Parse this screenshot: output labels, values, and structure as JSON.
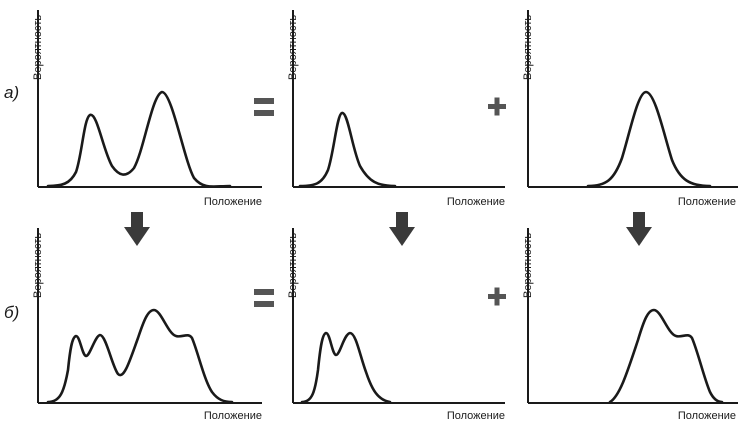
{
  "rows": [
    {
      "label": "а)",
      "panels": [
        {
          "ylabel": "Вероятность",
          "xlabel": "Положение",
          "curve": "double-peak"
        },
        {
          "ylabel": "Вероятность",
          "xlabel": "Положение",
          "curve": "narrow-peak"
        },
        {
          "ylabel": "Вероятность",
          "xlabel": "Положение",
          "curve": "wide-peak"
        }
      ],
      "operators": [
        "=",
        "+"
      ]
    },
    {
      "label": "б)",
      "panels": [
        {
          "ylabel": "Вероятность",
          "xlabel": "Положение",
          "curve": "four-peak"
        },
        {
          "ylabel": "Вероятность",
          "xlabel": "Положение",
          "curve": "split-narrow-peak"
        },
        {
          "ylabel": "Вероятность",
          "xlabel": "Положение",
          "curve": "shouldered-peak"
        }
      ],
      "operators": [
        "=",
        "+"
      ]
    }
  ],
  "arrows": [
    "down-arrow",
    "down-arrow",
    "down-arrow"
  ],
  "colors": {
    "ink": "#1a1a1a",
    "operator": "#555555",
    "arrow": "#3a3a3a"
  }
}
